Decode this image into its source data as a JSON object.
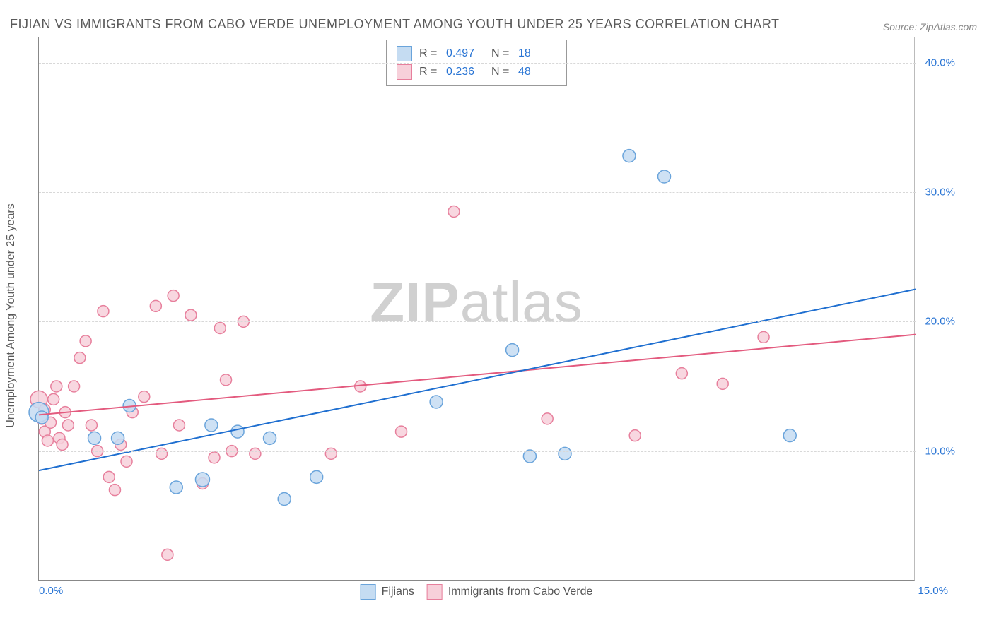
{
  "title": "FIJIAN VS IMMIGRANTS FROM CABO VERDE UNEMPLOYMENT AMONG YOUTH UNDER 25 YEARS CORRELATION CHART",
  "source": "Source: ZipAtlas.com",
  "watermark_bold": "ZIP",
  "watermark_light": "atlas",
  "chart": {
    "type": "scatter",
    "y_axis_label": "Unemployment Among Youth under 25 years",
    "xlim": [
      0,
      15
    ],
    "ylim": [
      0,
      42
    ],
    "y_ticks": [
      10,
      20,
      30,
      40
    ],
    "y_tick_labels": [
      "10.0%",
      "20.0%",
      "30.0%",
      "40.0%"
    ],
    "x_tick_left": "0.0%",
    "x_tick_right": "15.0%",
    "background_color": "#ffffff",
    "grid_color": "#d8d8d8",
    "series": [
      {
        "name": "Fijians",
        "fill": "#c5dcf2",
        "stroke": "#6aa4db",
        "r_label": "R =",
        "r_value": "0.497",
        "n_label": "N =",
        "n_value": "18",
        "trend": {
          "x1": 0,
          "y1": 8.5,
          "x2": 15,
          "y2": 22.5,
          "color": "#1f6fd0",
          "width": 2
        },
        "points": [
          [
            0.0,
            13.0,
            14
          ],
          [
            0.05,
            12.6,
            9
          ],
          [
            0.95,
            11.0,
            9
          ],
          [
            1.35,
            11.0,
            9
          ],
          [
            1.55,
            13.5,
            9
          ],
          [
            2.35,
            7.2,
            9
          ],
          [
            2.8,
            7.8,
            10
          ],
          [
            2.95,
            12.0,
            9
          ],
          [
            3.4,
            11.5,
            9
          ],
          [
            3.95,
            11.0,
            9
          ],
          [
            4.2,
            6.3,
            9
          ],
          [
            4.75,
            8.0,
            9
          ],
          [
            6.8,
            13.8,
            9
          ],
          [
            8.1,
            17.8,
            9
          ],
          [
            8.4,
            9.6,
            9
          ],
          [
            9.0,
            9.8,
            9
          ],
          [
            10.1,
            32.8,
            9
          ],
          [
            10.7,
            31.2,
            9
          ],
          [
            12.85,
            11.2,
            9
          ]
        ]
      },
      {
        "name": "Immigrants from Cabo Verde",
        "fill": "#f7d0da",
        "stroke": "#e77f9c",
        "r_label": "R =",
        "r_value": "0.236",
        "n_label": "N =",
        "n_value": "48",
        "trend": {
          "x1": 0,
          "y1": 12.8,
          "x2": 15,
          "y2": 19.0,
          "color": "#e35a7e",
          "width": 2
        },
        "points": [
          [
            0.0,
            14.0,
            12
          ],
          [
            0.05,
            12.5,
            8
          ],
          [
            0.1,
            13.2,
            8
          ],
          [
            0.1,
            11.5,
            8
          ],
          [
            0.15,
            10.8,
            8
          ],
          [
            0.2,
            12.2,
            8
          ],
          [
            0.25,
            14.0,
            8
          ],
          [
            0.3,
            15.0,
            8
          ],
          [
            0.35,
            11.0,
            8
          ],
          [
            0.4,
            10.5,
            8
          ],
          [
            0.45,
            13.0,
            8
          ],
          [
            0.5,
            12.0,
            8
          ],
          [
            0.6,
            15.0,
            8
          ],
          [
            0.7,
            17.2,
            8
          ],
          [
            0.8,
            18.5,
            8
          ],
          [
            0.9,
            12.0,
            8
          ],
          [
            1.0,
            10.0,
            8
          ],
          [
            1.1,
            20.8,
            8
          ],
          [
            1.2,
            8.0,
            8
          ],
          [
            1.3,
            7.0,
            8
          ],
          [
            1.4,
            10.5,
            8
          ],
          [
            1.5,
            9.2,
            8
          ],
          [
            1.6,
            13.0,
            8
          ],
          [
            1.8,
            14.2,
            8
          ],
          [
            2.0,
            21.2,
            8
          ],
          [
            2.1,
            9.8,
            8
          ],
          [
            2.2,
            2.0,
            8
          ],
          [
            2.3,
            22.0,
            8
          ],
          [
            2.4,
            12.0,
            8
          ],
          [
            2.6,
            20.5,
            8
          ],
          [
            2.8,
            7.5,
            8
          ],
          [
            3.0,
            9.5,
            8
          ],
          [
            3.1,
            19.5,
            8
          ],
          [
            3.2,
            15.5,
            8
          ],
          [
            3.3,
            10.0,
            8
          ],
          [
            3.5,
            20.0,
            8
          ],
          [
            3.7,
            9.8,
            8
          ],
          [
            5.0,
            9.8,
            8
          ],
          [
            5.5,
            15.0,
            8
          ],
          [
            6.2,
            11.5,
            8
          ],
          [
            7.1,
            28.5,
            8
          ],
          [
            8.7,
            12.5,
            8
          ],
          [
            10.2,
            11.2,
            8
          ],
          [
            11.0,
            16.0,
            8
          ],
          [
            11.7,
            15.2,
            8
          ],
          [
            12.4,
            18.8,
            8
          ]
        ]
      }
    ]
  },
  "legend_bottom": {
    "item1": "Fijians",
    "item2": "Immigrants from Cabo Verde"
  }
}
